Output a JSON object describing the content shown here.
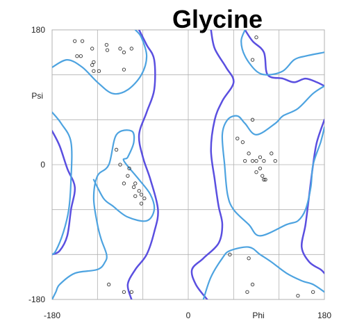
{
  "chart_data": {
    "type": "scatter",
    "title": "Glycine",
    "xlabel": "Phi",
    "ylabel": "Psi",
    "xlim": [
      -180,
      180
    ],
    "ylim": [
      -180,
      180
    ],
    "x_tick_labels": [
      "-180",
      "0",
      "180"
    ],
    "y_tick_labels": [
      "180",
      "0",
      "-180"
    ],
    "x_tick_values": [
      -180,
      0,
      180
    ],
    "y_tick_values": [
      180,
      0,
      -180
    ],
    "grid": true,
    "colors": {
      "favored_contour": "#4da3e0",
      "allowed_contour": "#5a4fe0",
      "points": "#333333",
      "grid": "#b0b0b0"
    },
    "points": [
      [
        -150,
        165
      ],
      [
        -140,
        165
      ],
      [
        -142,
        145
      ],
      [
        -147,
        145
      ],
      [
        -127,
        155
      ],
      [
        -125,
        137
      ],
      [
        -127,
        133
      ],
      [
        -108,
        160
      ],
      [
        -107,
        153
      ],
      [
        -90,
        155
      ],
      [
        -85,
        150
      ],
      [
        -75,
        155
      ],
      [
        -125,
        125
      ],
      [
        -118,
        125
      ],
      [
        -85,
        127
      ],
      [
        -95,
        20
      ],
      [
        -90,
        0
      ],
      [
        -78,
        -5
      ],
      [
        -80,
        -15
      ],
      [
        -85,
        -25
      ],
      [
        -70,
        -25
      ],
      [
        -72,
        -30
      ],
      [
        -65,
        -35
      ],
      [
        -70,
        -42
      ],
      [
        -62,
        -40
      ],
      [
        -58,
        -45
      ],
      [
        -62,
        -52
      ],
      [
        -105,
        -160
      ],
      [
        -85,
        -170
      ],
      [
        -75,
        -170
      ],
      [
        90,
        170
      ],
      [
        85,
        140
      ],
      [
        85,
        60
      ],
      [
        72,
        30
      ],
      [
        65,
        35
      ],
      [
        75,
        5
      ],
      [
        80,
        15
      ],
      [
        85,
        5
      ],
      [
        90,
        5
      ],
      [
        95,
        10
      ],
      [
        100,
        5
      ],
      [
        110,
        15
      ],
      [
        115,
        5
      ],
      [
        90,
        -10
      ],
      [
        95,
        -5
      ],
      [
        98,
        -15
      ],
      [
        100,
        -20
      ],
      [
        102,
        -20
      ],
      [
        55,
        -120
      ],
      [
        80,
        -125
      ],
      [
        85,
        -160
      ],
      [
        78,
        -170
      ],
      [
        145,
        -175
      ],
      [
        165,
        -170
      ]
    ],
    "favored_regions": [
      [
        [
          -180,
          130
        ],
        [
          -160,
          140
        ],
        [
          -140,
          130
        ],
        [
          -120,
          110
        ],
        [
          -100,
          95
        ],
        [
          -80,
          100
        ],
        [
          -62,
          120
        ],
        [
          -55,
          145
        ],
        [
          -62,
          170
        ],
        [
          -70,
          180
        ]
      ],
      [
        [
          -180,
          -180
        ],
        [
          -175,
          -170
        ],
        [
          -170,
          -160
        ],
        [
          -150,
          -145
        ],
        [
          -120,
          -140
        ],
        [
          -110,
          -130
        ],
        [
          -108,
          -120
        ],
        [
          -115,
          -100
        ],
        [
          -120,
          -80
        ],
        [
          -125,
          -45
        ],
        [
          -120,
          -15
        ],
        [
          -105,
          0
        ],
        [
          -95,
          40
        ],
        [
          -75,
          45
        ],
        [
          -72,
          30
        ],
        [
          -80,
          10
        ],
        [
          -85,
          5
        ],
        [
          -65,
          -20
        ],
        [
          -50,
          -40
        ],
        [
          -45,
          -60
        ],
        [
          -55,
          -75
        ],
        [
          -80,
          -70
        ],
        [
          -100,
          -55
        ],
        [
          -112,
          -45
        ],
        [
          -125,
          -20
        ]
      ],
      [
        [
          -180,
          70
        ],
        [
          -168,
          55
        ],
        [
          -155,
          30
        ],
        [
          -155,
          -20
        ],
        [
          -158,
          -60
        ],
        [
          -165,
          -90
        ],
        [
          -175,
          -115
        ],
        [
          -180,
          -120
        ]
      ],
      [
        [
          75,
          180
        ],
        [
          70,
          165
        ],
        [
          75,
          145
        ],
        [
          90,
          125
        ],
        [
          105,
          120
        ],
        [
          125,
          125
        ],
        [
          140,
          140
        ],
        [
          155,
          145
        ],
        [
          180,
          150
        ]
      ],
      [
        [
          180,
          105
        ],
        [
          165,
          95
        ],
        [
          145,
          75
        ],
        [
          125,
          65
        ],
        [
          115,
          55
        ],
        [
          90,
          40
        ],
        [
          75,
          55
        ],
        [
          65,
          65
        ],
        [
          52,
          60
        ],
        [
          45,
          40
        ],
        [
          48,
          0
        ],
        [
          52,
          -40
        ],
        [
          60,
          -60
        ],
        [
          80,
          -80
        ],
        [
          95,
          -95
        ],
        [
          130,
          -80
        ],
        [
          145,
          -75
        ],
        [
          155,
          -60
        ],
        [
          162,
          -30
        ],
        [
          165,
          0
        ],
        [
          175,
          30
        ],
        [
          180,
          50
        ]
      ],
      [
        [
          180,
          -170
        ],
        [
          165,
          -160
        ],
        [
          150,
          -155
        ],
        [
          130,
          -145
        ],
        [
          110,
          -130
        ],
        [
          95,
          -120
        ],
        [
          80,
          -110
        ],
        [
          55,
          -115
        ],
        [
          45,
          -125
        ],
        [
          30,
          -150
        ],
        [
          20,
          -180
        ]
      ]
    ],
    "allowed_regions": [
      [
        [
          -65,
          180
        ],
        [
          -55,
          160
        ],
        [
          -45,
          140
        ],
        [
          -45,
          100
        ],
        [
          -55,
          70
        ],
        [
          -65,
          40
        ],
        [
          -60,
          10
        ],
        [
          -50,
          -20
        ],
        [
          -40,
          -60
        ],
        [
          -45,
          -90
        ],
        [
          -55,
          -120
        ],
        [
          -70,
          -140
        ],
        [
          -80,
          -160
        ],
        [
          -75,
          -180
        ]
      ],
      [
        [
          -180,
          45
        ],
        [
          -170,
          25
        ],
        [
          -160,
          -5
        ],
        [
          -150,
          -30
        ],
        [
          -155,
          -60
        ],
        [
          -160,
          -95
        ],
        [
          -170,
          -115
        ],
        [
          -180,
          -120
        ]
      ],
      [
        [
          30,
          180
        ],
        [
          35,
          155
        ],
        [
          50,
          130
        ],
        [
          60,
          110
        ],
        [
          45,
          85
        ],
        [
          35,
          60
        ],
        [
          30,
          20
        ],
        [
          35,
          -20
        ],
        [
          40,
          -55
        ],
        [
          45,
          -80
        ],
        [
          40,
          -105
        ],
        [
          20,
          -125
        ],
        [
          5,
          -140
        ],
        [
          10,
          -160
        ],
        [
          25,
          -180
        ]
      ],
      [
        [
          75,
          180
        ],
        [
          85,
          165
        ],
        [
          100,
          150
        ],
        [
          105,
          120
        ],
        [
          125,
          115
        ],
        [
          140,
          110
        ],
        [
          155,
          115
        ],
        [
          170,
          110
        ],
        [
          180,
          105
        ]
      ],
      [
        [
          180,
          60
        ],
        [
          170,
          30
        ],
        [
          165,
          0
        ],
        [
          160,
          -40
        ],
        [
          155,
          -80
        ],
        [
          150,
          -110
        ],
        [
          160,
          -130
        ],
        [
          175,
          -140
        ],
        [
          180,
          -145
        ]
      ]
    ]
  }
}
